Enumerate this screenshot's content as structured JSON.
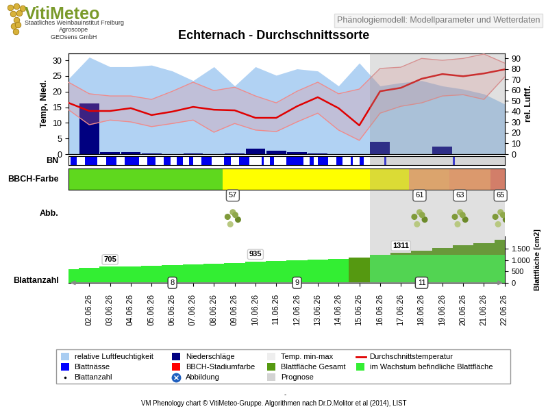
{
  "header": {
    "logo": "VitiMeteo",
    "lines": [
      "Staatliches Weinbauinstitut Freiburg",
      "Agroscope",
      "GEOsens GmbH"
    ],
    "box": "Phänologiemodell: Modellparameter und Wetterdaten"
  },
  "forecast": {
    "name": "Prognose",
    "from": "15.06.26",
    "color": "#9a9a9a"
  },
  "chart_data": [
    {
      "type": "line",
      "title": "Echternach - Durchschnittssorte",
      "categories": [
        null,
        "02.06.26",
        "03.06.26",
        "04.06.26",
        "05.06.26",
        "06.06.26",
        "07.06.26",
        "08.06.26",
        "09.06.26",
        "10.06.26",
        "11.06.26",
        "12.06.26",
        "13.06.26",
        "14.06.26",
        "15.06.26",
        "16.06.26",
        "17.06.26",
        "18.06.26",
        "19.06.26",
        "20.06.26",
        "21.06.26",
        "22.06.26"
      ],
      "xlim": [
        0,
        21
      ],
      "y_label": "Temp, Nied.",
      "y2_label": "rel. Luftf.",
      "ylim": [
        0,
        32.2
      ],
      "yticks": [
        0,
        5,
        10,
        15,
        20,
        25,
        30
      ],
      "y2lim": [
        0,
        94.5
      ],
      "y2ticks": [
        0,
        10,
        20,
        30,
        40,
        50,
        60,
        70,
        80,
        90
      ],
      "grid": false,
      "series": [
        {
          "name": "relative Luftfeuchtigkeit",
          "type": "area",
          "axis": "y2",
          "color": "#a9cdf2",
          "values": [
            70.7,
            91,
            82,
            82,
            83.5,
            78,
            69,
            82,
            64,
            82,
            74,
            80,
            78,
            64,
            85.5,
            64,
            67,
            69,
            64,
            61,
            56.5,
            47
          ]
        },
        {
          "name": "Niederschläge",
          "type": "bar",
          "color": "#000080",
          "values": [
            0,
            16.2,
            0.6,
            0.6,
            0.3,
            0,
            0.2,
            0,
            0.3,
            1.8,
            1.2,
            0.7,
            0.3,
            0.1,
            0,
            4.0,
            0,
            0,
            2.5,
            0,
            0,
            0
          ]
        },
        {
          "name": "Temp. min-max",
          "type": "band",
          "color": "#f08a8a",
          "low": [
            14.2,
            9.4,
            10.9,
            10.3,
            8.8,
            9.8,
            10.9,
            7,
            9.8,
            7.7,
            7.2,
            10.3,
            13.1,
            7.7,
            4.4,
            13.1,
            15.3,
            16.4,
            18.6,
            19,
            17.5,
            24.7
          ],
          "high": [
            23,
            19.3,
            18.6,
            18.6,
            17.5,
            20.1,
            23,
            20.3,
            21.4,
            18.6,
            16.4,
            20.1,
            23,
            19.3,
            20.8,
            27.4,
            27.8,
            30.6,
            30,
            30.6,
            32,
            29.1
          ]
        },
        {
          "name": "Durchschnittstemperatur",
          "type": "line",
          "color": "#e00000",
          "values": [
            16.4,
            13.8,
            13.8,
            14.7,
            12.5,
            13.6,
            15.1,
            14.2,
            14.0,
            11.6,
            11.6,
            15.3,
            18.2,
            14.7,
            9.2,
            20.1,
            21.2,
            24.1,
            25.6,
            24.9,
            25.8,
            27.1
          ]
        }
      ]
    },
    {
      "type": "timeline",
      "label": "BN",
      "name": "Blattnässe",
      "color": "#0000ee",
      "xlim": [
        0,
        21
      ],
      "intervals": [
        [
          0.1,
          0.4
        ],
        [
          0.8,
          1.4
        ],
        [
          1.8,
          2.3
        ],
        [
          2.7,
          3.4
        ],
        [
          3.8,
          4.2
        ],
        [
          4.6,
          4.9
        ],
        [
          5.2,
          5.5
        ],
        [
          5.8,
          6.0
        ],
        [
          6.4,
          6.9
        ],
        [
          7.5,
          7.8
        ],
        [
          8.2,
          8.7
        ],
        [
          9.3,
          9.4
        ],
        [
          9.7,
          9.9
        ],
        [
          10.5,
          11.3
        ],
        [
          11.6,
          11.8
        ],
        [
          12.0,
          12.5
        ],
        [
          12.9,
          13.2
        ],
        [
          13.6,
          13.7
        ],
        [
          14.0,
          14.2
        ],
        [
          15.2,
          15.3
        ],
        [
          18.5,
          18.6
        ]
      ]
    },
    {
      "type": "stages",
      "label": "BBCH-Farbe",
      "name": "BBCH-Stadiumfarbe",
      "xlim": [
        0,
        21
      ],
      "stages": [
        {
          "start": 0,
          "color": "#5fd81e"
        },
        {
          "start": 7.41,
          "code": 57,
          "color": "#ffff00"
        },
        {
          "start": 16.4,
          "code": 61,
          "color": "#ffaa55"
        },
        {
          "start": 18.35,
          "code": 63,
          "color": "#ff9955"
        },
        {
          "start": 20.3,
          "code": 65,
          "color": "#f07050"
        }
      ]
    },
    {
      "type": "images",
      "label": "Abb.",
      "name": "Abbildung",
      "xlim": [
        0,
        21
      ]
    },
    {
      "type": "bar",
      "y_label": "Blattfläche [cm2]",
      "categories": [
        null,
        "02.06.26",
        "03.06.26",
        "04.06.26",
        "05.06.26",
        "06.06.26",
        "07.06.26",
        "08.06.26",
        "09.06.26",
        "10.06.26",
        "11.06.26",
        "12.06.26",
        "13.06.26",
        "14.06.26",
        "15.06.26",
        "16.06.26",
        "17.06.26",
        "18.06.26",
        "19.06.26",
        "20.06.26",
        "21.06.26",
        "22.06.26"
      ],
      "xlim": [
        0,
        21
      ],
      "ylim": [
        0,
        2050
      ],
      "yticks": [
        0,
        500,
        {
          "value": 1000,
          "label": "1.000"
        },
        {
          "value": 1500,
          "label": "1.500"
        }
      ],
      "series": [
        {
          "name": "Blattfläche Gesamt",
          "color": "#559911",
          "values": [
            600,
            660,
            705,
            730,
            755,
            780,
            805,
            835,
            870,
            935,
            960,
            990,
            1020,
            1050,
            1120,
            1240,
            1311,
            1420,
            1540,
            1650,
            1760,
            1900
          ],
          "labels_at": [
            "03.06.26",
            "10.06.26",
            "17.06.26"
          ]
        },
        {
          "name": "im Wachstum befindliche Blattfläche",
          "color": "#33ee33",
          "values": [
            600,
            660,
            705,
            730,
            755,
            780,
            805,
            835,
            870,
            935,
            960,
            990,
            1020,
            1050,
            null,
            1240,
            1240,
            1240,
            1240,
            1240,
            1240,
            1240
          ]
        }
      ],
      "leaf_count": {
        "name": "Blattanzahl",
        "points": [
          {
            "x": "06.06.26",
            "value": 8
          },
          {
            "x": "12.06.26",
            "value": 9
          },
          {
            "x": "18.06.26",
            "value": 11
          }
        ]
      }
    }
  ],
  "legend": "lower center",
  "legend_entries": [
    {
      "name": "relative Luftfeuchtigkeit",
      "color": "#a9cdf2",
      "marker": "square"
    },
    {
      "name": "Niederschläge",
      "color": "#000080",
      "marker": "square"
    },
    {
      "name": "Temp. min-max",
      "color": "#eeeeee",
      "marker": "square"
    },
    {
      "name": "Durchschnittstemperatur",
      "color": "#e00000",
      "marker": "line"
    },
    {
      "name": "Blattnässe",
      "color": "#0000ff",
      "marker": "square"
    },
    {
      "name": "BBCH-Stadiumfarbe",
      "color": "#ff0000",
      "marker": "square"
    },
    {
      "name": "Blattfläche Gesamt",
      "color": "#559911",
      "marker": "square"
    },
    {
      "name": "im Wachstum befindliche Blattfläche",
      "color": "#33ee33",
      "marker": "square"
    },
    {
      "name": "Blattanzahl",
      "color": "#000000",
      "marker": "dot"
    },
    {
      "name": "Abbildung",
      "color": "#1f5fbf",
      "marker": "circle"
    },
    {
      "name": "Prognose",
      "color": "#d3d3d3",
      "marker": "square"
    }
  ],
  "footer": {
    "mark": "-",
    "text": "VM Phenology chart © VitiMeteo-Gruppe. Algorithmen nach Dr.D.Molitor et al (2014), LIST"
  }
}
